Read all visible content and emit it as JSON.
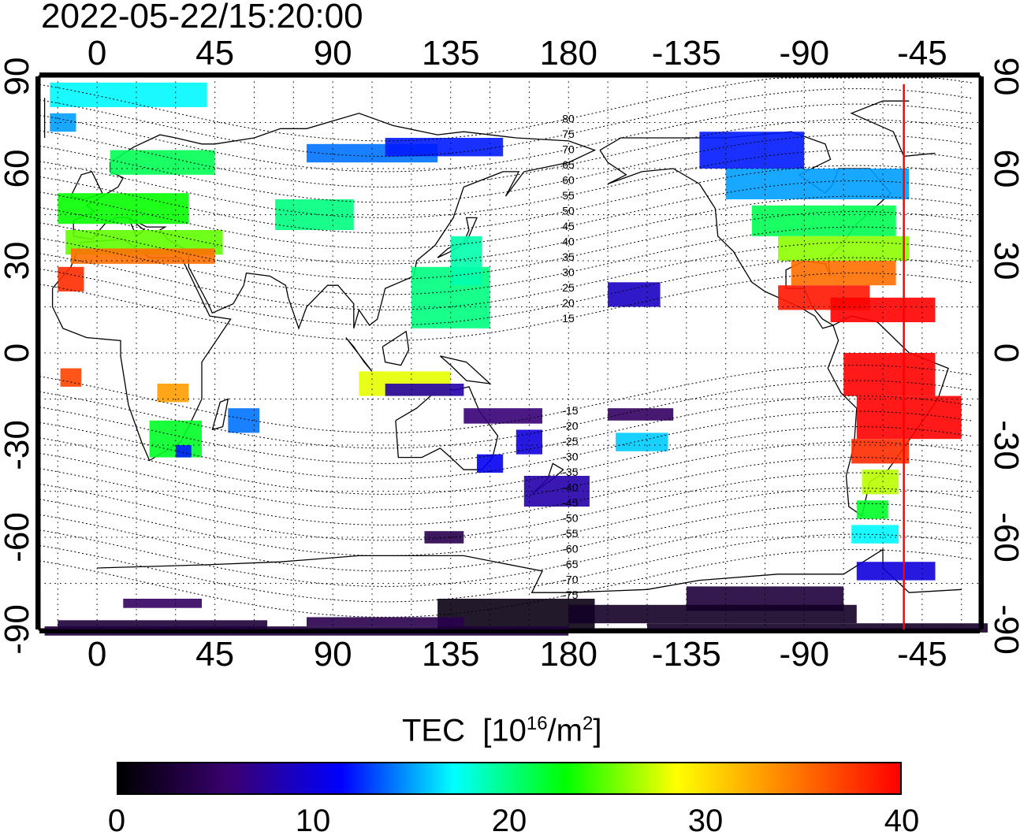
{
  "timestamp": "2022-05-22/15:20:00",
  "map": {
    "projection": "equirectangular, centered on 150E",
    "lon_range_deg": [
      -22,
      337
    ],
    "lat_range_deg": [
      -90,
      90
    ],
    "top_lon_labels": [
      "0",
      "45",
      "90",
      "135",
      "180",
      "-135",
      "-90",
      "-45"
    ],
    "bottom_lon_labels": [
      "0",
      "45",
      "90",
      "135",
      "180",
      "-135",
      "-90",
      "-45"
    ],
    "left_lat_labels": [
      "90",
      "60",
      "30",
      "0",
      "-30",
      "-60",
      "-90"
    ],
    "right_lat_labels": [
      "90",
      "60",
      "30",
      "0",
      "-30",
      "-60",
      "-90"
    ],
    "grid": "dotted 15 degree graticule",
    "terminator_longitude_deg": -52,
    "terminator_color": "#ff0000",
    "magnetic_latitude_labels": [
      "80",
      "75",
      "70",
      "65",
      "60",
      "55",
      "50",
      "45",
      "40",
      "35",
      "30",
      "25",
      "20",
      "15",
      "-15",
      "-20",
      "-25",
      "-30",
      "-35",
      "-40",
      "-45",
      "-50",
      "-55",
      "-60",
      "-65",
      "-70",
      "-75"
    ]
  },
  "colorbar": {
    "title": "TEC",
    "unit_text": "[10",
    "unit_exp": "16",
    "unit_mid": "/m",
    "unit_exp2": "2",
    "unit_end": "]",
    "ticks": [
      "0",
      "10",
      "20",
      "30",
      "40"
    ],
    "range": [
      0,
      40
    ],
    "colors": [
      "#000000",
      "#3a0070",
      "#0000ff",
      "#00ffff",
      "#00ff00",
      "#ffff00",
      "#ff7f00",
      "#ff0000"
    ]
  }
}
